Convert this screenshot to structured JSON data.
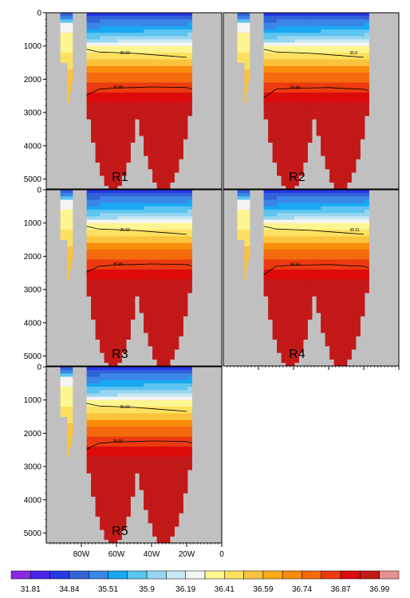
{
  "chart_data": {
    "type": "heatmap",
    "yaxis": {
      "ticks": [
        0,
        1000,
        2000,
        3000,
        4000,
        5000
      ],
      "ylim": [
        0,
        5300
      ],
      "direction": "depth increasing downward"
    },
    "xaxis": {
      "ticks": [
        -80,
        -60,
        -40,
        -20,
        0
      ],
      "tick_labels": [
        "80W",
        "60W",
        "40W",
        "20W",
        "0"
      ],
      "xlim": [
        -100,
        0
      ]
    },
    "panels": [
      {
        "name": "R1",
        "contours": [
          {
            "value": 36.62,
            "label": "36.62",
            "depths": [
              1100,
              1180,
              1200,
              1220,
              1260,
              1300,
              1340
            ]
          },
          {
            "value": 36.99,
            "label": "36.99",
            "depths": [
              2480,
              2300,
              2260,
              2250,
              2230,
              2240,
              2250,
              2300
            ]
          }
        ]
      },
      {
        "name": "R2",
        "contours": [
          {
            "value": 36.6,
            "label": "36.6",
            "depths": [
              1100,
              1180,
              1200,
              1220,
              1260,
              1300,
              1340
            ]
          },
          {
            "value": 36.99,
            "label": "36.99",
            "depths": [
              2560,
              2300,
              2270,
              2260,
              2250,
              2280,
              2300,
              2350
            ]
          }
        ]
      },
      {
        "name": "R3",
        "contours": [
          {
            "value": 36.62,
            "label": "36.62",
            "depths": [
              1100,
              1180,
              1200,
              1220,
              1260,
              1300,
              1340
            ]
          },
          {
            "value": 36.99,
            "label": "36.99",
            "depths": [
              2480,
              2300,
              2260,
              2250,
              2230,
              2240,
              2250,
              2300
            ]
          }
        ]
      },
      {
        "name": "R4",
        "contours": [
          {
            "value": 36.61,
            "label": "36.61",
            "depths": [
              1100,
              1180,
              1200,
              1220,
              1260,
              1300,
              1340
            ]
          },
          {
            "value": 36.99,
            "label": "36.99",
            "depths": [
              2560,
              2300,
              2270,
              2260,
              2250,
              2280,
              2300,
              2350
            ]
          }
        ]
      },
      {
        "name": "R5",
        "contours": [
          {
            "value": 36.62,
            "label": "36.62",
            "depths": [
              1100,
              1180,
              1200,
              1220,
              1260,
              1300,
              1340
            ]
          },
          {
            "value": 36.99,
            "label": "36.99",
            "depths": [
              2480,
              2300,
              2260,
              2250,
              2230,
              2240,
              2250,
              2300
            ]
          }
        ]
      }
    ],
    "colorbar": {
      "labels": [
        "31.81",
        "34.84",
        "35.51",
        "35.9",
        "36.19",
        "36.41",
        "36.59",
        "36.74",
        "36.87",
        "36.99"
      ],
      "colors": [
        "#8a2be2",
        "#4b25e8",
        "#2838e6",
        "#3163d8",
        "#3a86e6",
        "#18a8f2",
        "#5cc4f0",
        "#97d6f0",
        "#c9e8f4",
        "#f4f4f4",
        "#fcf590",
        "#fde060",
        "#fbc33c",
        "#fbaa1a",
        "#f98c0a",
        "#f46a0c",
        "#ec3a10",
        "#dc0a0a",
        "#c31818",
        "#e79090"
      ],
      "position": "bottom"
    },
    "land_color": "#c0c0c0"
  }
}
